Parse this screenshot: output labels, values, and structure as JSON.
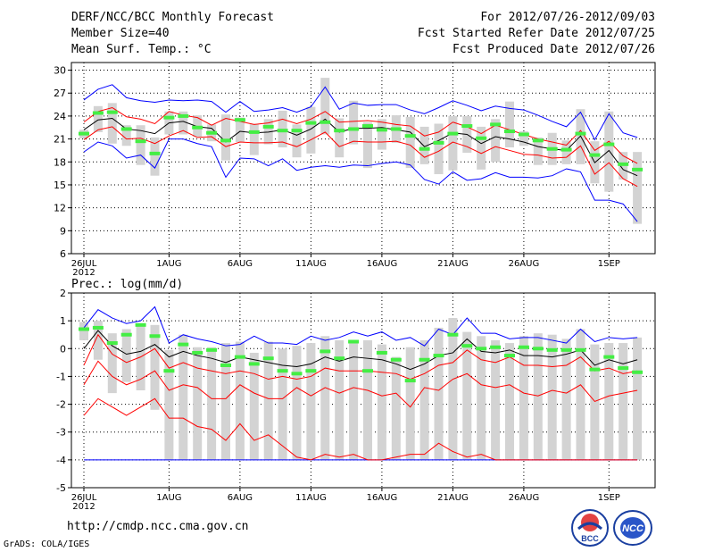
{
  "header": {
    "title": "DERF/NCC/BCC Monthly Forecast",
    "member": "Member Size=40",
    "var": "Mean Surf. Temp.: °C",
    "period": "For 2012/07/26-2012/09/03",
    "refer": "Fcst Started Refer Date 2012/07/25",
    "produced": "Fcst Produced Date 2012/07/26"
  },
  "footer": {
    "url": "http://cmdp.ncc.cma.gov.cn",
    "credit": "GrADS: COLA/IGES"
  },
  "logos": {
    "bcc": "BCC",
    "ncc": "NCC"
  },
  "colors": {
    "max_min": "#0000ff",
    "spread": "#ff0000",
    "mean": "#000000",
    "median": "#44ee44",
    "box": "#d3d3d3"
  },
  "chart_data": [
    {
      "type": "box-line",
      "title": "Mean Surf. Temp.: °C",
      "x_ticks": [
        "26JUL",
        "1AUG",
        "6AUG",
        "11AUG",
        "16AUG",
        "21AUG",
        "26AUG",
        "1SEP"
      ],
      "x_year": "2012",
      "ylim": [
        6,
        31
      ],
      "y_ticks": [
        6,
        9,
        12,
        15,
        18,
        21,
        24,
        27,
        30
      ],
      "days": 40,
      "series": [
        {
          "name": "max",
          "values": [
            26.1,
            27.5,
            28.1,
            26.4,
            26.0,
            25.8,
            26.1,
            26.0,
            26.1,
            25.9,
            24.5,
            25.9,
            24.6,
            24.8,
            25.1,
            24.5,
            25.2,
            27.8,
            24.9,
            25.7,
            25.4,
            25.5,
            25.5,
            24.8,
            24.3,
            25.1,
            26.0,
            25.4,
            24.7,
            25.3,
            25.0,
            24.8,
            24.1,
            23.3,
            22.6,
            24.5,
            20.9,
            24.3,
            21.8,
            21.2
          ]
        },
        {
          "name": "p75",
          "values": [
            23.2,
            24.6,
            25.1,
            23.9,
            23.6,
            23.0,
            24.6,
            24.1,
            23.8,
            22.8,
            23.7,
            23.3,
            22.9,
            23.1,
            23.6,
            23.0,
            23.6,
            24.6,
            23.2,
            23.3,
            23.4,
            23.2,
            22.9,
            22.7,
            21.4,
            21.9,
            23.2,
            22.6,
            21.7,
            22.8,
            22.2,
            21.6,
            21.0,
            20.6,
            20.2,
            22.1,
            19.5,
            20.7,
            18.8,
            17.8
          ]
        },
        {
          "name": "mean",
          "values": [
            22.2,
            23.5,
            23.7,
            22.3,
            22.1,
            21.7,
            23.1,
            23.3,
            22.6,
            22.4,
            20.6,
            22.0,
            21.8,
            21.9,
            22.2,
            21.5,
            22.3,
            23.6,
            21.9,
            22.4,
            22.4,
            22.5,
            22.2,
            21.9,
            20.0,
            20.8,
            21.8,
            21.6,
            20.4,
            21.3,
            21.0,
            20.6,
            20.0,
            19.7,
            19.5,
            21.4,
            17.9,
            19.5,
            17.0,
            16.2
          ]
        },
        {
          "name": "p25",
          "values": [
            20.9,
            22.2,
            22.6,
            21.0,
            21.1,
            20.4,
            21.4,
            22.1,
            21.2,
            21.3,
            20.0,
            20.6,
            20.5,
            20.5,
            20.6,
            20.0,
            20.9,
            21.9,
            20.0,
            20.7,
            20.6,
            20.6,
            20.7,
            20.2,
            18.6,
            19.4,
            20.6,
            20.0,
            19.1,
            20.0,
            19.5,
            19.0,
            18.9,
            18.5,
            18.6,
            20.1,
            16.4,
            17.9,
            15.8,
            14.8
          ]
        },
        {
          "name": "min",
          "values": [
            19.3,
            20.6,
            20.1,
            18.5,
            18.9,
            17.2,
            21.0,
            21.0,
            20.4,
            20.0,
            16.0,
            18.5,
            18.4,
            17.5,
            18.4,
            16.9,
            17.3,
            17.5,
            17.3,
            17.6,
            17.5,
            17.8,
            18.0,
            17.6,
            15.7,
            15.1,
            16.7,
            15.6,
            15.8,
            16.6,
            16.0,
            16.0,
            15.9,
            16.2,
            17.1,
            16.7,
            13.0,
            13.0,
            12.5,
            10.2
          ]
        },
        {
          "name": "box_top",
          "values": [
            22.2,
            25.3,
            25.7,
            22.8,
            22.8,
            21.2,
            24.6,
            24.6,
            24.1,
            22.9,
            24.2,
            23.8,
            23.0,
            23.6,
            24.7,
            22.9,
            25.2,
            29.0,
            23.7,
            26.0,
            23.2,
            23.6,
            24.1,
            23.9,
            22.6,
            23.0,
            24.0,
            24.0,
            22.6,
            23.6,
            25.9,
            22.0,
            21.2,
            21.8,
            20.8,
            24.9,
            20.7,
            24.6,
            19.3,
            19.3
          ]
        },
        {
          "name": "box_bottom",
          "values": [
            21.1,
            21.9,
            20.4,
            20.1,
            17.6,
            16.2,
            21.6,
            21.6,
            21.3,
            20.7,
            18.2,
            20.6,
            18.9,
            20.3,
            19.9,
            18.6,
            19.1,
            21.6,
            18.6,
            20.3,
            17.2,
            19.6,
            20.5,
            17.2,
            17.7,
            16.4,
            16.9,
            19.2,
            17.0,
            18.0,
            19.9,
            20.1,
            17.6,
            17.6,
            17.7,
            17.7,
            15.2,
            14.1,
            15.7,
            9.9
          ]
        },
        {
          "name": "median",
          "values": [
            21.7,
            24.4,
            24.5,
            22.3,
            20.7,
            19.1,
            23.8,
            24.0,
            22.5,
            21.8,
            20.8,
            23.5,
            21.9,
            22.6,
            22.1,
            22.1,
            23.1,
            23.2,
            22.1,
            22.3,
            22.7,
            22.2,
            22.3,
            21.4,
            19.7,
            20.5,
            21.7,
            22.7,
            21.1,
            22.9,
            22.0,
            21.6,
            20.8,
            19.7,
            19.6,
            21.7,
            18.9,
            20.3,
            17.7,
            17.0
          ]
        }
      ]
    },
    {
      "type": "box-line",
      "title": "Prec.: log(mm/d)",
      "x_ticks": [
        "26JUL",
        "1AUG",
        "6AUG",
        "11AUG",
        "16AUG",
        "21AUG",
        "26AUG",
        "1SEP"
      ],
      "x_year": "2012",
      "ylim": [
        -5,
        2
      ],
      "y_ticks": [
        -5,
        -4,
        -3,
        -2,
        -1,
        0,
        1,
        2
      ],
      "days": 40,
      "series": [
        {
          "name": "max",
          "values": [
            0.75,
            1.4,
            1.1,
            0.9,
            1.0,
            1.5,
            0.2,
            0.5,
            0.35,
            0.25,
            0.1,
            0.15,
            0.45,
            0.2,
            0.2,
            0.15,
            0.45,
            0.3,
            0.4,
            0.6,
            0.45,
            0.6,
            0.3,
            0.4,
            0.1,
            0.7,
            0.5,
            1.1,
            0.55,
            0.55,
            0.35,
            0.4,
            0.4,
            0.3,
            0.2,
            0.7,
            0.25,
            0.4,
            0.35,
            0.4
          ]
        },
        {
          "name": "mean",
          "values": [
            0.0,
            0.65,
            0.1,
            -0.2,
            -0.1,
            0.15,
            -0.3,
            -0.1,
            -0.25,
            -0.35,
            -0.5,
            -0.3,
            -0.4,
            -0.5,
            -0.6,
            -0.65,
            -0.55,
            -0.3,
            -0.45,
            -0.3,
            -0.35,
            -0.4,
            -0.55,
            -0.75,
            -0.55,
            -0.25,
            -0.15,
            0.35,
            -0.1,
            -0.15,
            -0.05,
            -0.25,
            -0.25,
            -0.3,
            -0.2,
            -0.05,
            -0.6,
            -0.4,
            -0.55,
            -0.4
          ]
        },
        {
          "name": "p75",
          "values": [
            -0.6,
            0.5,
            -0.2,
            -0.5,
            -0.3,
            0.0,
            -0.7,
            -0.5,
            -0.7,
            -0.8,
            -0.9,
            -0.8,
            -0.9,
            -1.1,
            -1.0,
            -1.1,
            -1.0,
            -0.7,
            -0.8,
            -0.8,
            -0.8,
            -0.85,
            -0.9,
            -1.1,
            -0.9,
            -0.6,
            -0.5,
            -0.05,
            -0.4,
            -0.5,
            -0.3,
            -0.6,
            -0.6,
            -0.65,
            -0.6,
            -0.3,
            -0.8,
            -0.7,
            -0.9,
            -0.8
          ]
        },
        {
          "name": "p25",
          "values": [
            -1.3,
            -0.45,
            -1.0,
            -1.3,
            -1.1,
            -0.8,
            -1.5,
            -1.3,
            -1.4,
            -1.8,
            -1.8,
            -1.3,
            -1.6,
            -1.8,
            -1.8,
            -1.4,
            -1.7,
            -1.4,
            -1.6,
            -1.4,
            -1.5,
            -1.7,
            -1.6,
            -2.1,
            -1.4,
            -1.5,
            -1.1,
            -0.9,
            -1.3,
            -1.4,
            -1.3,
            -1.6,
            -1.7,
            -1.5,
            -1.6,
            -1.3,
            -1.9,
            -1.7,
            -1.6,
            -1.5
          ]
        },
        {
          "name": "p10",
          "values": [
            -2.4,
            -1.8,
            -2.1,
            -2.4,
            -2.1,
            -1.8,
            -2.5,
            -2.5,
            -2.8,
            -2.9,
            -3.3,
            -2.7,
            -3.3,
            -3.1,
            -3.5,
            -3.9,
            -4.0,
            -3.8,
            -3.9,
            -3.8,
            -4.0,
            -4.0,
            -3.9,
            -3.8,
            -3.8,
            -3.4,
            -3.7,
            -3.9,
            -3.8,
            -4.0,
            -4.0,
            -4.0,
            -4.0,
            -4.0,
            -4.0,
            -4.0,
            -4.0,
            -4.0,
            -4.0,
            -4.0
          ]
        },
        {
          "name": "min",
          "values": [
            -4.0,
            -4.0,
            -4.0,
            -4.0,
            -4.0,
            -4.0,
            -4.0,
            -4.0,
            -4.0,
            -4.0,
            -4.0,
            -4.0,
            -4.0,
            -4.0,
            -4.0,
            -4.0,
            -4.0,
            -4.0,
            -4.0,
            -4.0,
            -4.0,
            -4.0,
            -4.0,
            -4.0,
            -4.0,
            -4.0,
            -4.0,
            -4.0,
            -4.0,
            -4.0,
            -4.0,
            -4.0,
            -4.0,
            -4.0,
            -4.0,
            -4.0,
            -4.0,
            -4.0,
            -4.0,
            -4.0
          ]
        },
        {
          "name": "box_top",
          "values": [
            0.95,
            1.0,
            0.55,
            0.7,
            0.9,
            0.85,
            -0.05,
            0.5,
            0.05,
            0.05,
            0.2,
            0.25,
            -0.15,
            0.25,
            0.0,
            0.1,
            0.2,
            0.45,
            0.3,
            0.3,
            0.3,
            0.15,
            -0.3,
            0.05,
            0.3,
            0.75,
            1.1,
            0.6,
            0.45,
            0.3,
            0.2,
            0.45,
            0.55,
            0.5,
            0.35,
            0.7,
            0.15,
            0.2,
            0.2,
            0.4
          ]
        },
        {
          "name": "box_bottom",
          "values": [
            0.3,
            -0.4,
            -1.6,
            -1.2,
            -1.5,
            -2.2,
            -4.0,
            -4.0,
            -4.0,
            -4.0,
            -4.0,
            -4.0,
            -4.0,
            -4.0,
            -4.0,
            -4.0,
            -4.0,
            -4.0,
            -4.0,
            -4.0,
            -4.0,
            -4.0,
            -4.0,
            -4.0,
            -4.0,
            -4.0,
            -4.0,
            -4.0,
            -4.0,
            -4.0,
            -4.0,
            -4.0,
            -4.0,
            -4.0,
            -4.0,
            -4.0,
            -4.0,
            -4.0,
            -4.0,
            -4.0
          ]
        },
        {
          "name": "median",
          "values": [
            0.7,
            0.75,
            0.2,
            0.5,
            0.85,
            0.45,
            -0.8,
            0.15,
            -0.15,
            -0.05,
            -0.6,
            -0.3,
            -0.55,
            -0.35,
            -0.8,
            -0.9,
            -0.8,
            -0.1,
            -0.35,
            0.25,
            -0.8,
            -0.15,
            -0.4,
            -1.15,
            -0.4,
            -0.25,
            0.5,
            0.1,
            0.0,
            0.05,
            -0.25,
            0.05,
            0.0,
            -0.05,
            -0.05,
            -0.05,
            -0.75,
            -0.3,
            -0.7,
            -0.85
          ]
        }
      ]
    }
  ]
}
